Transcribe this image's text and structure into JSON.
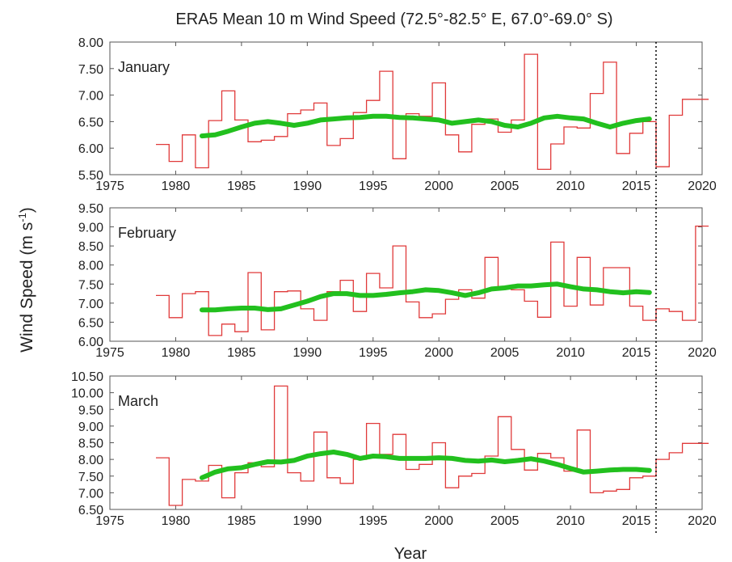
{
  "chart_data": {
    "type": "line",
    "title": "ERA5 Mean 10 m Wind Speed (72.5°-82.5° E, 67.0°-69.0° S)",
    "xlabel": "Year",
    "ylabel_main": "Wind Speed (m s",
    "ylabel_sup": "-1",
    "ylabel_close": ")",
    "xlim": [
      1975,
      2020
    ],
    "xticks": [
      "1975",
      "1980",
      "1985",
      "1990",
      "1995",
      "2000",
      "2005",
      "2010",
      "2015",
      "2020"
    ],
    "vline_x": 2016.5,
    "colors": {
      "monthly": "#e03a3a",
      "running_mean": "#22c01e",
      "vline": "#000000"
    },
    "panels": [
      {
        "label": "January",
        "ylim": [
          5.5,
          8.0
        ],
        "yticks": [
          "5.50",
          "6.00",
          "6.50",
          "7.00",
          "7.50",
          "8.00"
        ],
        "years": [
          1979,
          1980,
          1981,
          1982,
          1983,
          1984,
          1985,
          1986,
          1987,
          1988,
          1989,
          1990,
          1991,
          1992,
          1993,
          1994,
          1995,
          1996,
          1997,
          1998,
          1999,
          2000,
          2001,
          2002,
          2003,
          2004,
          2005,
          2006,
          2007,
          2008,
          2009,
          2010,
          2011,
          2012,
          2013,
          2014,
          2015,
          2016,
          2017,
          2018,
          2019,
          2020
        ],
        "values": [
          6.07,
          5.75,
          6.25,
          5.63,
          6.52,
          7.08,
          6.53,
          6.12,
          6.15,
          6.22,
          6.65,
          6.72,
          6.85,
          6.05,
          6.18,
          6.67,
          6.9,
          7.45,
          5.8,
          6.65,
          6.6,
          7.23,
          6.25,
          5.93,
          6.45,
          6.55,
          6.3,
          6.53,
          7.77,
          5.6,
          6.08,
          6.4,
          6.38,
          7.03,
          7.62,
          5.9,
          6.28,
          6.5,
          5.65,
          6.62,
          6.92,
          6.92
        ],
        "running_mean": {
          "years": [
            1982,
            1983,
            1984,
            1985,
            1986,
            1987,
            1988,
            1989,
            1990,
            1991,
            1992,
            1993,
            1994,
            1995,
            1996,
            1997,
            1998,
            1999,
            2000,
            2001,
            2002,
            2003,
            2004,
            2005,
            2006,
            2007,
            2008,
            2009,
            2010,
            2011,
            2012,
            2013,
            2014,
            2015,
            2016
          ],
          "values": [
            6.23,
            6.25,
            6.32,
            6.4,
            6.47,
            6.5,
            6.47,
            6.43,
            6.47,
            6.53,
            6.55,
            6.57,
            6.58,
            6.6,
            6.6,
            6.58,
            6.57,
            6.55,
            6.53,
            6.47,
            6.5,
            6.53,
            6.5,
            6.43,
            6.4,
            6.47,
            6.57,
            6.6,
            6.57,
            6.55,
            6.47,
            6.4,
            6.47,
            6.52,
            6.55
          ]
        }
      },
      {
        "label": "February",
        "ylim": [
          6.0,
          9.5
        ],
        "yticks": [
          "6.00",
          "6.50",
          "7.00",
          "7.50",
          "8.00",
          "8.50",
          "9.00",
          "9.50"
        ],
        "years": [
          1979,
          1980,
          1981,
          1982,
          1983,
          1984,
          1985,
          1986,
          1987,
          1988,
          1989,
          1990,
          1991,
          1992,
          1993,
          1994,
          1995,
          1996,
          1997,
          1998,
          1999,
          2000,
          2001,
          2002,
          2003,
          2004,
          2005,
          2006,
          2007,
          2008,
          2009,
          2010,
          2011,
          2012,
          2013,
          2014,
          2015,
          2016,
          2017,
          2018,
          2019,
          2020
        ],
        "values": [
          7.2,
          6.62,
          7.25,
          7.3,
          6.15,
          6.45,
          6.25,
          7.8,
          6.3,
          7.3,
          7.32,
          6.85,
          6.55,
          7.3,
          7.6,
          6.78,
          7.78,
          7.4,
          8.5,
          7.03,
          6.62,
          6.72,
          7.1,
          7.35,
          7.13,
          8.2,
          7.38,
          7.35,
          7.05,
          6.63,
          8.6,
          6.92,
          8.2,
          6.95,
          7.93,
          7.93,
          6.92,
          6.55,
          6.85,
          6.78,
          6.55,
          9.02
        ],
        "running_mean": {
          "years": [
            1982,
            1983,
            1984,
            1985,
            1986,
            1987,
            1988,
            1989,
            1990,
            1991,
            1992,
            1993,
            1994,
            1995,
            1996,
            1997,
            1998,
            1999,
            2000,
            2001,
            2002,
            2003,
            2004,
            2005,
            2006,
            2007,
            2008,
            2009,
            2010,
            2011,
            2012,
            2013,
            2014,
            2015,
            2016
          ],
          "values": [
            6.82,
            6.82,
            6.85,
            6.87,
            6.87,
            6.83,
            6.85,
            6.95,
            7.05,
            7.17,
            7.25,
            7.25,
            7.2,
            7.2,
            7.23,
            7.27,
            7.3,
            7.35,
            7.33,
            7.27,
            7.2,
            7.27,
            7.37,
            7.4,
            7.45,
            7.45,
            7.48,
            7.5,
            7.43,
            7.37,
            7.35,
            7.3,
            7.27,
            7.3,
            7.28
          ]
        }
      },
      {
        "label": "March",
        "ylim": [
          6.5,
          10.5
        ],
        "yticks": [
          "6.50",
          "7.00",
          "7.50",
          "8.00",
          "8.50",
          "9.00",
          "9.50",
          "10.00",
          "10.50"
        ],
        "years": [
          1979,
          1980,
          1981,
          1982,
          1983,
          1984,
          1985,
          1986,
          1987,
          1988,
          1989,
          1990,
          1991,
          1992,
          1993,
          1994,
          1995,
          1996,
          1997,
          1998,
          1999,
          2000,
          2001,
          2002,
          2003,
          2004,
          2005,
          2006,
          2007,
          2008,
          2009,
          2010,
          2011,
          2012,
          2013,
          2014,
          2015,
          2016,
          2017,
          2018,
          2019,
          2020
        ],
        "values": [
          8.05,
          6.62,
          7.4,
          7.35,
          7.82,
          6.85,
          7.6,
          7.9,
          7.78,
          10.2,
          7.6,
          7.35,
          8.82,
          7.45,
          7.28,
          8.0,
          9.08,
          8.15,
          8.75,
          7.7,
          7.85,
          8.5,
          7.15,
          7.5,
          7.58,
          8.1,
          9.28,
          8.3,
          7.68,
          8.18,
          8.05,
          7.65,
          8.88,
          7.0,
          7.05,
          7.1,
          7.45,
          7.5,
          8.0,
          8.2,
          8.48,
          8.48
        ],
        "running_mean": {
          "years": [
            1982,
            1983,
            1984,
            1985,
            1986,
            1987,
            1988,
            1989,
            1990,
            1991,
            1992,
            1993,
            1994,
            1995,
            1996,
            1997,
            1998,
            1999,
            2000,
            2001,
            2002,
            2003,
            2004,
            2005,
            2006,
            2007,
            2008,
            2009,
            2010,
            2011,
            2012,
            2013,
            2014,
            2015,
            2016
          ],
          "values": [
            7.45,
            7.62,
            7.72,
            7.75,
            7.85,
            7.93,
            7.92,
            7.97,
            8.1,
            8.17,
            8.22,
            8.15,
            8.03,
            8.1,
            8.08,
            8.03,
            8.03,
            8.03,
            8.05,
            8.03,
            7.97,
            7.95,
            7.98,
            7.93,
            7.97,
            8.02,
            7.95,
            7.85,
            7.73,
            7.62,
            7.65,
            7.68,
            7.7,
            7.7,
            7.67
          ]
        }
      }
    ]
  }
}
